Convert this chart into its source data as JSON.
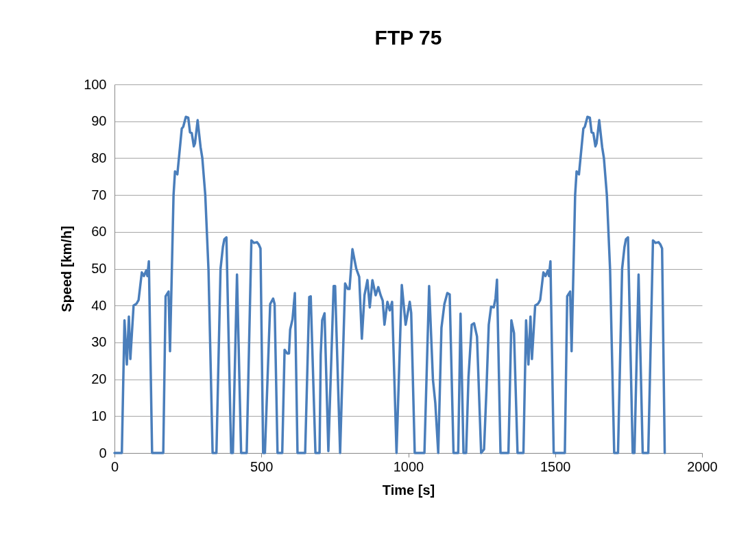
{
  "chart_data": {
    "type": "line",
    "title": "FTP 75",
    "xlabel": "Time [s]",
    "ylabel": "Speed [km/h]",
    "xlim": [
      0,
      2000
    ],
    "xticks": [
      0,
      500,
      1000,
      1500,
      2000
    ],
    "ylim": [
      0,
      100
    ],
    "yticks": [
      0,
      10,
      20,
      30,
      40,
      50,
      60,
      70,
      80,
      90,
      100
    ],
    "grid": "y",
    "series": [
      {
        "color": "#4a7ebb",
        "x": [
          0,
          25,
          34,
          42,
          49,
          54,
          65,
          75,
          82,
          93,
          100,
          108,
          112,
          117,
          128,
          166,
          174,
          184,
          189,
          201,
          206,
          214,
          229,
          234,
          243,
          251,
          257,
          263,
          270,
          274,
          283,
          293,
          299,
          309,
          320,
          334,
          347,
          361,
          369,
          374,
          381,
          397,
          403,
          417,
          431,
          450,
          466,
          475,
          485,
          491,
          497,
          506,
          512,
          530,
          540,
          545,
          555,
          571,
          579,
          588,
          594,
          598,
          606,
          614,
          623,
          649,
          663,
          668,
          684,
          698,
          702,
          707,
          715,
          728,
          746,
          751,
          768,
          785,
          794,
          800,
          810,
          823,
          833,
          842,
          851,
          861,
          869,
          878,
          889,
          898,
          906,
          913,
          919,
          929,
          937,
          945,
          960,
          978,
          991,
          1005,
          1010,
          1022,
          1055,
          1071,
          1084,
          1092,
          1102,
          1113,
          1123,
          1133,
          1141,
          1154,
          1170,
          1178,
          1188,
          1197,
          1205,
          1216,
          1224,
          1234,
          1248,
          1258,
          1266,
          1274,
          1282,
          1291,
          1297,
          1302,
          1314,
          1341,
          1351,
          1360,
          1372,
          1392,
          1401,
          1409,
          1416,
          1421,
          1432,
          1442,
          1449,
          1460,
          1467,
          1475,
          1479,
          1484,
          1495,
          1533,
          1541,
          1551,
          1556,
          1568,
          1573,
          1581,
          1596,
          1601,
          1610,
          1618,
          1624,
          1630,
          1637,
          1641,
          1650,
          1660,
          1666,
          1676,
          1687,
          1701,
          1714,
          1728,
          1736,
          1741,
          1748,
          1764,
          1770,
          1784,
          1798,
          1817,
          1833,
          1842,
          1852,
          1858,
          1864,
          1873
        ],
        "values": [
          0,
          0,
          36,
          24,
          37,
          25.5,
          40,
          40.5,
          41.5,
          49,
          48,
          49.5,
          48,
          52,
          0,
          0,
          42.5,
          43.8,
          27.6,
          70,
          76.4,
          75.6,
          88,
          88.5,
          91.2,
          91,
          87,
          86.8,
          83.2,
          84,
          90.3,
          83,
          80,
          70,
          49.7,
          0,
          0,
          50,
          55.9,
          58,
          58.5,
          0,
          0,
          48.4,
          0,
          0,
          57.7,
          57,
          57.2,
          56.6,
          55.5,
          0,
          0,
          40.4,
          41.9,
          40.4,
          0,
          0,
          28,
          27,
          27,
          33.5,
          36.3,
          43.4,
          0,
          0,
          42.3,
          42.5,
          0,
          0,
          26.6,
          36,
          37.9,
          0.5,
          45.3,
          45.3,
          0,
          46,
          44.5,
          44.5,
          55.3,
          50,
          47.8,
          31,
          42.8,
          46.9,
          39.5,
          46.9,
          42.8,
          45,
          42.8,
          41.3,
          34.8,
          41,
          38.7,
          41,
          0,
          45.6,
          34.8,
          41,
          38,
          0,
          0,
          45.3,
          19.9,
          13.6,
          0,
          34,
          40.4,
          43.4,
          43,
          0,
          0,
          37.8,
          0,
          0,
          20.5,
          34.8,
          35.2,
          31.6,
          0,
          1,
          16.8,
          34.8,
          39.7,
          39.5,
          42,
          47,
          0,
          0,
          36,
          32.5,
          0,
          0,
          36,
          24,
          37,
          25.5,
          40,
          40.5,
          41.5,
          49,
          48,
          49.5,
          48,
          52,
          0,
          0,
          42.5,
          43.8,
          27.6,
          70,
          76.4,
          75.6,
          88,
          88.5,
          91.2,
          91,
          87,
          86.8,
          83.2,
          84,
          90.3,
          83,
          80,
          70,
          49.7,
          0,
          0,
          50,
          55.9,
          58,
          58.5,
          0,
          0,
          48.4,
          0,
          0,
          57.7,
          57,
          57.2,
          56.6,
          55.5,
          0
        ]
      }
    ]
  }
}
